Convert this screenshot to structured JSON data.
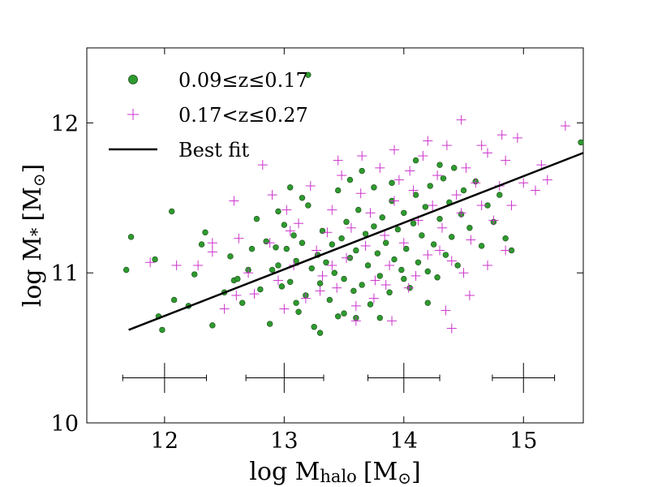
{
  "chart_data": {
    "type": "scatter",
    "title": "",
    "xlabel": {
      "main": "log M",
      "sub": "halo",
      "unit": "[M",
      "sun": "⊙",
      "close": "]"
    },
    "ylabel": {
      "main": "log M",
      "sub": "*",
      "unit": "[M",
      "sun": "⊙",
      "close": "]"
    },
    "xlim": [
      11.35,
      15.5
    ],
    "ylim": [
      10.0,
      12.5
    ],
    "xticks": [
      12,
      13,
      14,
      15
    ],
    "yticks": [
      10,
      11,
      12
    ],
    "xtick_labels": [
      "12",
      "13",
      "14",
      "15"
    ],
    "ytick_labels": [
      "10",
      "11",
      "12"
    ],
    "grid": false,
    "legend_position": "top-left",
    "legend": [
      {
        "label": "0.09≤z≤0.17",
        "marker": "circle",
        "color": "#2e9a2e"
      },
      {
        "label": "0.17<z≤0.27",
        "marker": "plus",
        "color": "#cc33cc"
      },
      {
        "label": "Best fit",
        "marker": "line",
        "color": "#000000"
      }
    ],
    "best_fit": {
      "x": [
        11.7,
        15.5
      ],
      "y": [
        10.62,
        11.8
      ]
    },
    "error_bars": [
      {
        "x": 12.0,
        "y": 10.3,
        "xerr_low": 0.35,
        "xerr_high": 0.35,
        "yerr": 0.1
      },
      {
        "x": 13.0,
        "y": 10.3,
        "xerr_low": 0.32,
        "xerr_high": 0.33,
        "yerr": 0.1
      },
      {
        "x": 14.0,
        "y": 10.3,
        "xerr_low": 0.3,
        "xerr_high": 0.3,
        "yerr": 0.1
      },
      {
        "x": 15.0,
        "y": 10.3,
        "xerr_low": 0.26,
        "xerr_high": 0.26,
        "yerr": 0.1
      }
    ],
    "series": [
      {
        "name": "0.09≤z≤0.17",
        "marker": "circle",
        "color": "#2e9a2e",
        "points": [
          [
            11.68,
            11.02
          ],
          [
            11.72,
            11.24
          ],
          [
            11.92,
            11.09
          ],
          [
            11.95,
            10.71
          ],
          [
            11.98,
            10.62
          ],
          [
            12.06,
            11.41
          ],
          [
            12.08,
            10.82
          ],
          [
            12.25,
            10.99
          ],
          [
            12.31,
            11.19
          ],
          [
            12.34,
            11.27
          ],
          [
            12.4,
            10.65
          ],
          [
            12.5,
            10.87
          ],
          [
            12.55,
            11.11
          ],
          [
            12.58,
            10.95
          ],
          [
            12.61,
            10.96
          ],
          [
            12.65,
            10.8
          ],
          [
            12.7,
            11.02
          ],
          [
            12.73,
            11.16
          ],
          [
            12.77,
            11.36
          ],
          [
            12.8,
            10.89
          ],
          [
            12.85,
            11.21
          ],
          [
            12.88,
            10.66
          ],
          [
            12.9,
            11.02
          ],
          [
            12.93,
            11.17
          ],
          [
            12.95,
            11.05
          ],
          [
            12.98,
            10.91
          ],
          [
            13.0,
            11.32
          ],
          [
            13.02,
            11.16
          ],
          [
            13.05,
            10.94
          ],
          [
            13.08,
            11.25
          ],
          [
            13.1,
            11.08
          ],
          [
            13.12,
            10.74
          ],
          [
            13.15,
            11.2
          ],
          [
            13.18,
            10.85
          ],
          [
            13.2,
            11.45
          ],
          [
            13.23,
            11.03
          ],
          [
            13.25,
            10.64
          ],
          [
            13.28,
            11.12
          ],
          [
            13.3,
            10.93
          ],
          [
            13.32,
            11.28
          ],
          [
            13.35,
            11.07
          ],
          [
            13.38,
            10.82
          ],
          [
            13.4,
            11.19
          ],
          [
            13.42,
            11.0
          ],
          [
            13.45,
            10.71
          ],
          [
            13.48,
            11.23
          ],
          [
            13.5,
            10.96
          ],
          [
            13.52,
            11.34
          ],
          [
            13.55,
            11.1
          ],
          [
            13.58,
            10.88
          ],
          [
            13.6,
            11.15
          ],
          [
            13.62,
            11.42
          ],
          [
            13.65,
            10.92
          ],
          [
            13.68,
            11.26
          ],
          [
            13.7,
            11.05
          ],
          [
            13.72,
            10.79
          ],
          [
            13.75,
            11.31
          ],
          [
            13.78,
            11.13
          ],
          [
            13.8,
            10.98
          ],
          [
            13.82,
            11.37
          ],
          [
            13.85,
            11.2
          ],
          [
            13.88,
            10.87
          ],
          [
            13.9,
            11.48
          ],
          [
            13.92,
            11.09
          ],
          [
            13.95,
            11.29
          ],
          [
            13.98,
            11.02
          ],
          [
            14.0,
            11.4
          ],
          [
            14.02,
            11.16
          ],
          [
            14.05,
            10.9
          ],
          [
            14.08,
            11.33
          ],
          [
            14.1,
            11.52
          ],
          [
            14.12,
            11.07
          ],
          [
            14.15,
            11.25
          ],
          [
            14.18,
            11.44
          ],
          [
            14.2,
            11.01
          ],
          [
            14.22,
            11.58
          ],
          [
            14.25,
            11.19
          ],
          [
            14.28,
            10.97
          ],
          [
            14.3,
            11.36
          ],
          [
            14.33,
            11.63
          ],
          [
            14.35,
            11.12
          ],
          [
            14.38,
            11.47
          ],
          [
            14.4,
            11.24
          ],
          [
            14.42,
            11.7
          ],
          [
            14.45,
            11.05
          ],
          [
            14.48,
            11.39
          ],
          [
            14.5,
            11.55
          ],
          [
            14.55,
            11.3
          ],
          [
            14.6,
            11.61
          ],
          [
            14.65,
            11.18
          ],
          [
            14.7,
            11.45
          ],
          [
            14.75,
            11.34
          ],
          [
            14.8,
            11.52
          ],
          [
            14.85,
            11.23
          ],
          [
            14.9,
            11.15
          ],
          [
            15.48,
            11.87
          ],
          [
            13.2,
            12.32
          ],
          [
            13.05,
            11.57
          ],
          [
            13.15,
            11.5
          ],
          [
            12.95,
            11.41
          ],
          [
            13.45,
            11.55
          ],
          [
            13.55,
            11.62
          ],
          [
            13.65,
            11.68
          ],
          [
            13.75,
            11.57
          ],
          [
            14.1,
            11.75
          ],
          [
            14.3,
            11.72
          ],
          [
            13.9,
            11.6
          ],
          [
            14.0,
            10.96
          ],
          [
            14.2,
            10.8
          ],
          [
            13.5,
            10.73
          ],
          [
            13.6,
            10.7
          ],
          [
            13.3,
            10.6
          ],
          [
            13.8,
            10.7
          ],
          [
            12.2,
            10.78
          ],
          [
            13.1,
            10.8
          ]
        ]
      },
      {
        "name": "0.17<z≤0.27",
        "marker": "plus",
        "color": "#cc33cc",
        "points": [
          [
            11.88,
            11.07
          ],
          [
            12.1,
            11.05
          ],
          [
            12.28,
            11.05
          ],
          [
            12.4,
            11.14
          ],
          [
            12.5,
            10.76
          ],
          [
            12.58,
            11.48
          ],
          [
            12.62,
            11.23
          ],
          [
            12.7,
            11.0
          ],
          [
            12.75,
            10.86
          ],
          [
            12.82,
            11.72
          ],
          [
            12.88,
            11.2
          ],
          [
            12.95,
            10.95
          ],
          [
            13.02,
            11.42
          ],
          [
            13.08,
            11.05
          ],
          [
            13.12,
            11.33
          ],
          [
            13.18,
            10.83
          ],
          [
            13.22,
            11.58
          ],
          [
            13.27,
            11.15
          ],
          [
            13.32,
            10.98
          ],
          [
            13.36,
            11.27
          ],
          [
            13.4,
            11.42
          ],
          [
            13.44,
            10.9
          ],
          [
            13.48,
            11.65
          ],
          [
            13.52,
            11.1
          ],
          [
            13.56,
            11.3
          ],
          [
            13.6,
            10.78
          ],
          [
            13.64,
            11.53
          ],
          [
            13.68,
            11.18
          ],
          [
            13.72,
            11.4
          ],
          [
            13.76,
            10.95
          ],
          [
            13.8,
            11.7
          ],
          [
            13.84,
            11.25
          ],
          [
            13.88,
            11.05
          ],
          [
            13.92,
            11.48
          ],
          [
            13.96,
            11.62
          ],
          [
            14.0,
            11.2
          ],
          [
            14.04,
            10.9
          ],
          [
            14.08,
            11.55
          ],
          [
            14.12,
            11.35
          ],
          [
            14.16,
            11.78
          ],
          [
            14.2,
            11.12
          ],
          [
            14.24,
            11.45
          ],
          [
            14.28,
            11.65
          ],
          [
            14.32,
            11.3
          ],
          [
            14.36,
            11.85
          ],
          [
            14.4,
            11.08
          ],
          [
            14.44,
            11.52
          ],
          [
            14.48,
            11.4
          ],
          [
            14.52,
            11.7
          ],
          [
            14.56,
            11.22
          ],
          [
            14.6,
            11.6
          ],
          [
            14.65,
            11.45
          ],
          [
            14.7,
            11.8
          ],
          [
            14.75,
            11.35
          ],
          [
            14.8,
            11.58
          ],
          [
            14.85,
            11.75
          ],
          [
            14.9,
            11.45
          ],
          [
            14.95,
            11.9
          ],
          [
            15.0,
            11.6
          ],
          [
            15.1,
            11.55
          ],
          [
            15.15,
            11.72
          ],
          [
            15.2,
            11.62
          ],
          [
            15.35,
            11.98
          ],
          [
            14.82,
            11.92
          ],
          [
            14.48,
            12.02
          ],
          [
            13.92,
            11.82
          ],
          [
            13.65,
            11.78
          ],
          [
            14.2,
            11.88
          ],
          [
            14.65,
            11.85
          ],
          [
            13.45,
            11.75
          ],
          [
            14.35,
            10.75
          ],
          [
            14.4,
            10.63
          ],
          [
            13.9,
            10.68
          ],
          [
            13.6,
            10.68
          ],
          [
            13.0,
            10.76
          ],
          [
            12.6,
            10.85
          ],
          [
            14.55,
            10.85
          ],
          [
            14.5,
            11.0
          ],
          [
            14.7,
            11.05
          ],
          [
            14.85,
            11.15
          ],
          [
            13.75,
            10.83
          ],
          [
            14.1,
            10.98
          ],
          [
            13.3,
            10.88
          ],
          [
            13.85,
            10.92
          ],
          [
            12.4,
            11.2
          ],
          [
            12.9,
            11.52
          ],
          [
            13.05,
            11.28
          ],
          [
            13.4,
            11.05
          ],
          [
            14.05,
            11.68
          ],
          [
            14.3,
            11.15
          ]
        ]
      }
    ]
  }
}
